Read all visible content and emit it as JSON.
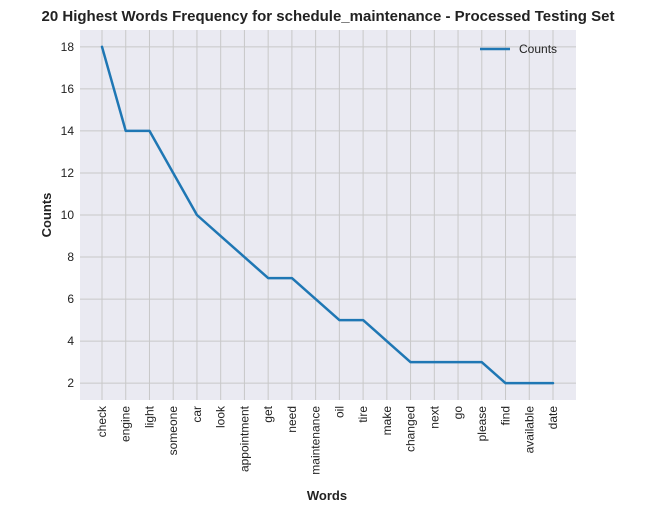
{
  "chart_data": {
    "type": "line",
    "title": "20 Highest Words Frequency for schedule_maintenance - Processed Testing Set",
    "xlabel": "Words",
    "ylabel": "Counts",
    "categories": [
      "check",
      "engine",
      "light",
      "someone",
      "car",
      "look",
      "appointment",
      "get",
      "need",
      "maintenance",
      "oil",
      "tire",
      "make",
      "changed",
      "next",
      "go",
      "please",
      "find",
      "available",
      "date"
    ],
    "series": [
      {
        "name": "Counts",
        "color": "#1f77b4",
        "values": [
          18,
          14,
          14,
          12,
          10,
          9,
          8,
          7,
          7,
          6,
          5,
          5,
          4,
          3,
          3,
          3,
          3,
          2,
          2,
          2
        ]
      }
    ],
    "yticks": [
      2,
      4,
      6,
      8,
      10,
      12,
      14,
      16,
      18
    ],
    "ylim": [
      1.2,
      18.8
    ],
    "grid": true,
    "legend_position": "top-right",
    "colors": {
      "plot_background": "#eaeaf2",
      "grid": "#c8c8c8"
    }
  }
}
